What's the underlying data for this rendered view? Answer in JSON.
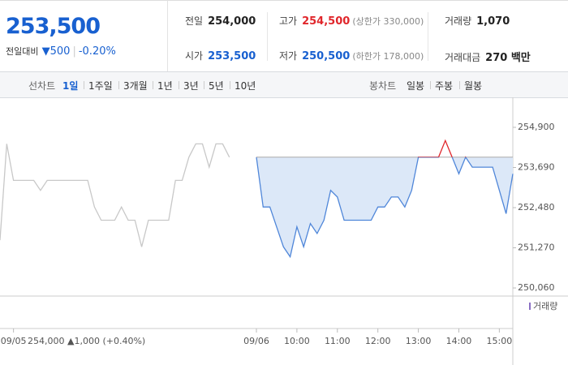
{
  "quote": {
    "price": "253,500",
    "change_label": "전일대비",
    "change": "500",
    "change_pct": "-0.20%"
  },
  "stats": [
    {
      "label": "전일",
      "value": "254,000"
    },
    {
      "label": "고가",
      "value": "254,500",
      "note": "(상한가 330,000)"
    },
    {
      "label": "거래량",
      "value": "1,070"
    },
    {
      "label": "시가",
      "value": "253,500"
    },
    {
      "label": "저가",
      "value": "250,500",
      "note": "(하한가 178,000)"
    },
    {
      "label": "거래대금",
      "value": "270 백만"
    }
  ],
  "line_tabs": {
    "label": "선차트",
    "items": [
      "1일",
      "1주일",
      "3개월",
      "1년",
      "3년",
      "5년",
      "10년"
    ]
  },
  "candle_tabs": {
    "label": "봉차트",
    "items": [
      "일봉",
      "주봉",
      "월봉"
    ]
  },
  "chart_data": {
    "type": "line",
    "categories": [
      null,
      null,
      "09/05",
      null,
      null,
      null,
      null,
      null,
      null,
      null,
      null,
      null,
      null,
      null,
      null,
      null,
      null,
      null,
      null,
      null,
      null,
      null,
      null,
      null,
      null,
      null,
      null,
      null,
      null,
      null,
      null,
      null,
      null,
      null,
      null,
      null,
      null,
      null,
      "09/06",
      null,
      null,
      null,
      null,
      null,
      "10:00",
      null,
      null,
      null,
      null,
      null,
      "11:00",
      null,
      null,
      null,
      null,
      null,
      "12:00",
      null,
      null,
      null,
      null,
      null,
      "13:00",
      null,
      null,
      null,
      null,
      null,
      "14:00",
      null,
      null,
      null,
      null,
      null,
      "15:00",
      null,
      null
    ],
    "series": [
      {
        "color": "#c8c8c8",
        "values": [
          251500,
          254400,
          253300,
          253300,
          253300,
          253300,
          253000,
          253300,
          253300,
          253300,
          253300,
          253300,
          253300,
          253300,
          252500,
          252100,
          252100,
          252100,
          252500,
          252100,
          252100,
          251300,
          252100,
          252100,
          252100,
          252100,
          253300,
          253300,
          254000,
          254400,
          254400,
          253700,
          254400,
          254400,
          254000,
          null,
          null,
          null,
          null,
          null,
          null,
          null,
          null,
          null,
          null,
          null,
          null,
          null,
          null,
          null,
          null,
          null,
          null,
          null,
          null,
          null,
          null,
          null,
          null,
          null,
          null,
          null,
          null,
          null,
          null,
          null,
          null,
          null,
          null,
          null,
          null,
          null,
          null,
          null,
          null,
          null,
          null
        ]
      },
      {
        "color": "#4f86d9",
        "values": [
          null,
          null,
          null,
          null,
          null,
          null,
          null,
          null,
          null,
          null,
          null,
          null,
          null,
          null,
          null,
          null,
          null,
          null,
          null,
          null,
          null,
          null,
          null,
          null,
          null,
          null,
          null,
          null,
          null,
          null,
          null,
          null,
          null,
          null,
          null,
          null,
          null,
          null,
          254000,
          252500,
          252500,
          251900,
          251300,
          251000,
          251900,
          251300,
          252000,
          251700,
          252100,
          253000,
          252800,
          252100,
          252100,
          252100,
          252100,
          252100,
          252500,
          252500,
          252800,
          252800,
          252500,
          253000,
          254000,
          254000,
          254000,
          254000,
          254500,
          254000,
          253500,
          254000,
          253700,
          253700,
          253700,
          253700,
          253000,
          252300,
          253500
        ]
      }
    ],
    "baseline": 254000,
    "up_color": "#e0262b",
    "ylim": [
      249816,
      255755
    ],
    "yticks": [
      {
        "value": 254900,
        "label": "254,900"
      },
      {
        "value": 253690,
        "label": "253,690"
      },
      {
        "value": 252480,
        "label": "252,480"
      },
      {
        "value": 251270,
        "label": "251,270"
      },
      {
        "value": 250060,
        "label": "250,060"
      }
    ],
    "volume_legend": "거래량",
    "prev_close": "254,000",
    "prev_change": "1,000",
    "prev_change_pct": "(+0.40%)"
  }
}
